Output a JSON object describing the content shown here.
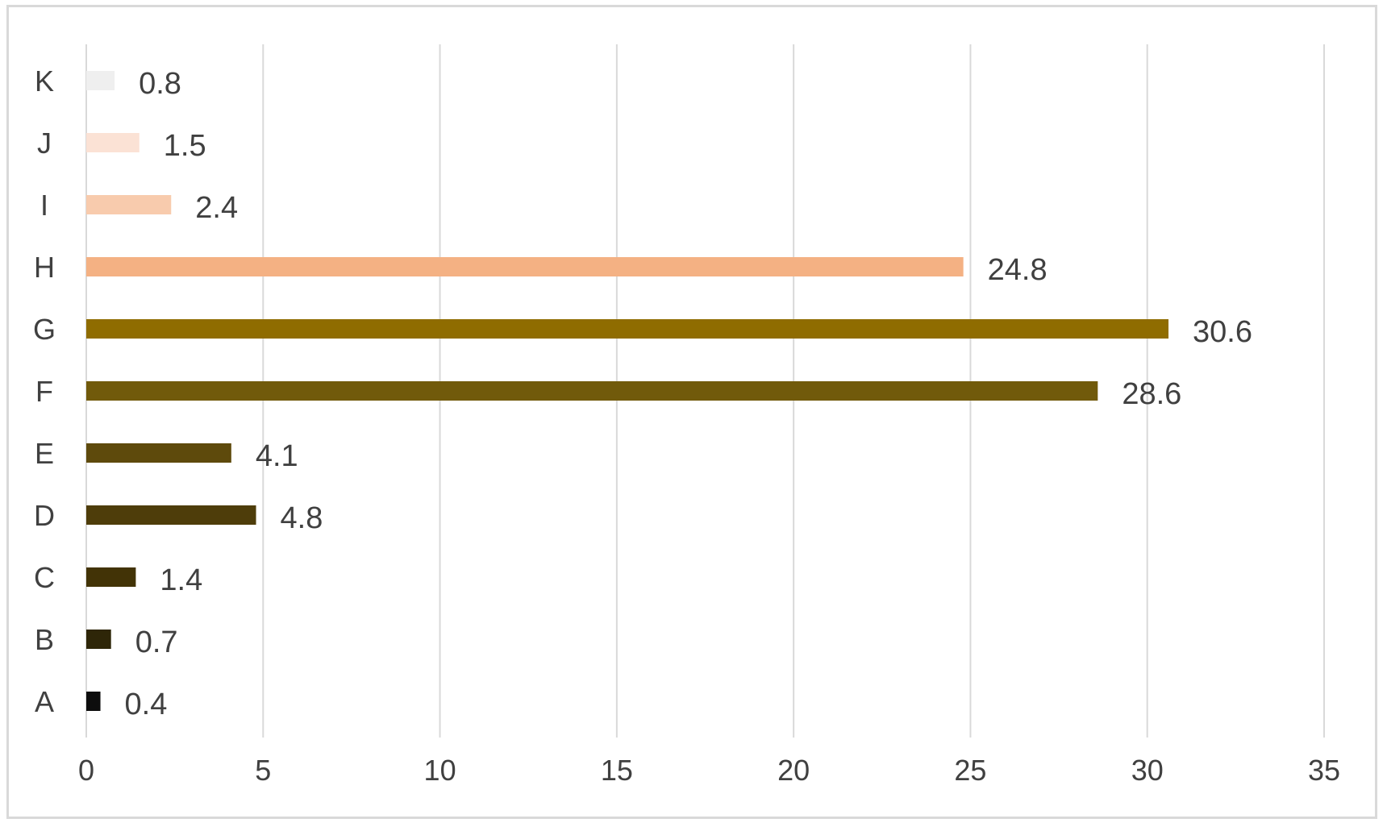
{
  "chart_data": {
    "type": "bar",
    "orientation": "horizontal",
    "categories": [
      "A",
      "B",
      "C",
      "D",
      "E",
      "F",
      "G",
      "H",
      "I",
      "J",
      "K"
    ],
    "values": [
      0.4,
      0.7,
      1.4,
      4.8,
      4.1,
      28.6,
      30.6,
      24.8,
      2.4,
      1.5,
      0.8
    ],
    "value_labels": [
      "0.4",
      "0.7",
      "1.4",
      "4.8",
      "4.1",
      "28.6",
      "30.6",
      "24.8",
      "2.4",
      "1.5",
      "0.8"
    ],
    "colors": [
      "#0d0d0d",
      "#2e2608",
      "#423306",
      "#4e3d0a",
      "#5e4a0c",
      "#715a0b",
      "#8f6c00",
      "#f4b183",
      "#f8cbad",
      "#fbe2d5",
      "#efefef"
    ],
    "title": "",
    "xlabel": "",
    "ylabel": "",
    "xlim": [
      0,
      35
    ],
    "xticks": [
      0,
      5,
      10,
      15,
      20,
      25,
      30,
      35
    ],
    "xtick_labels": [
      "0",
      "5",
      "10",
      "15",
      "20",
      "25",
      "30",
      "35"
    ],
    "grid": "vertical",
    "legend": "none"
  }
}
